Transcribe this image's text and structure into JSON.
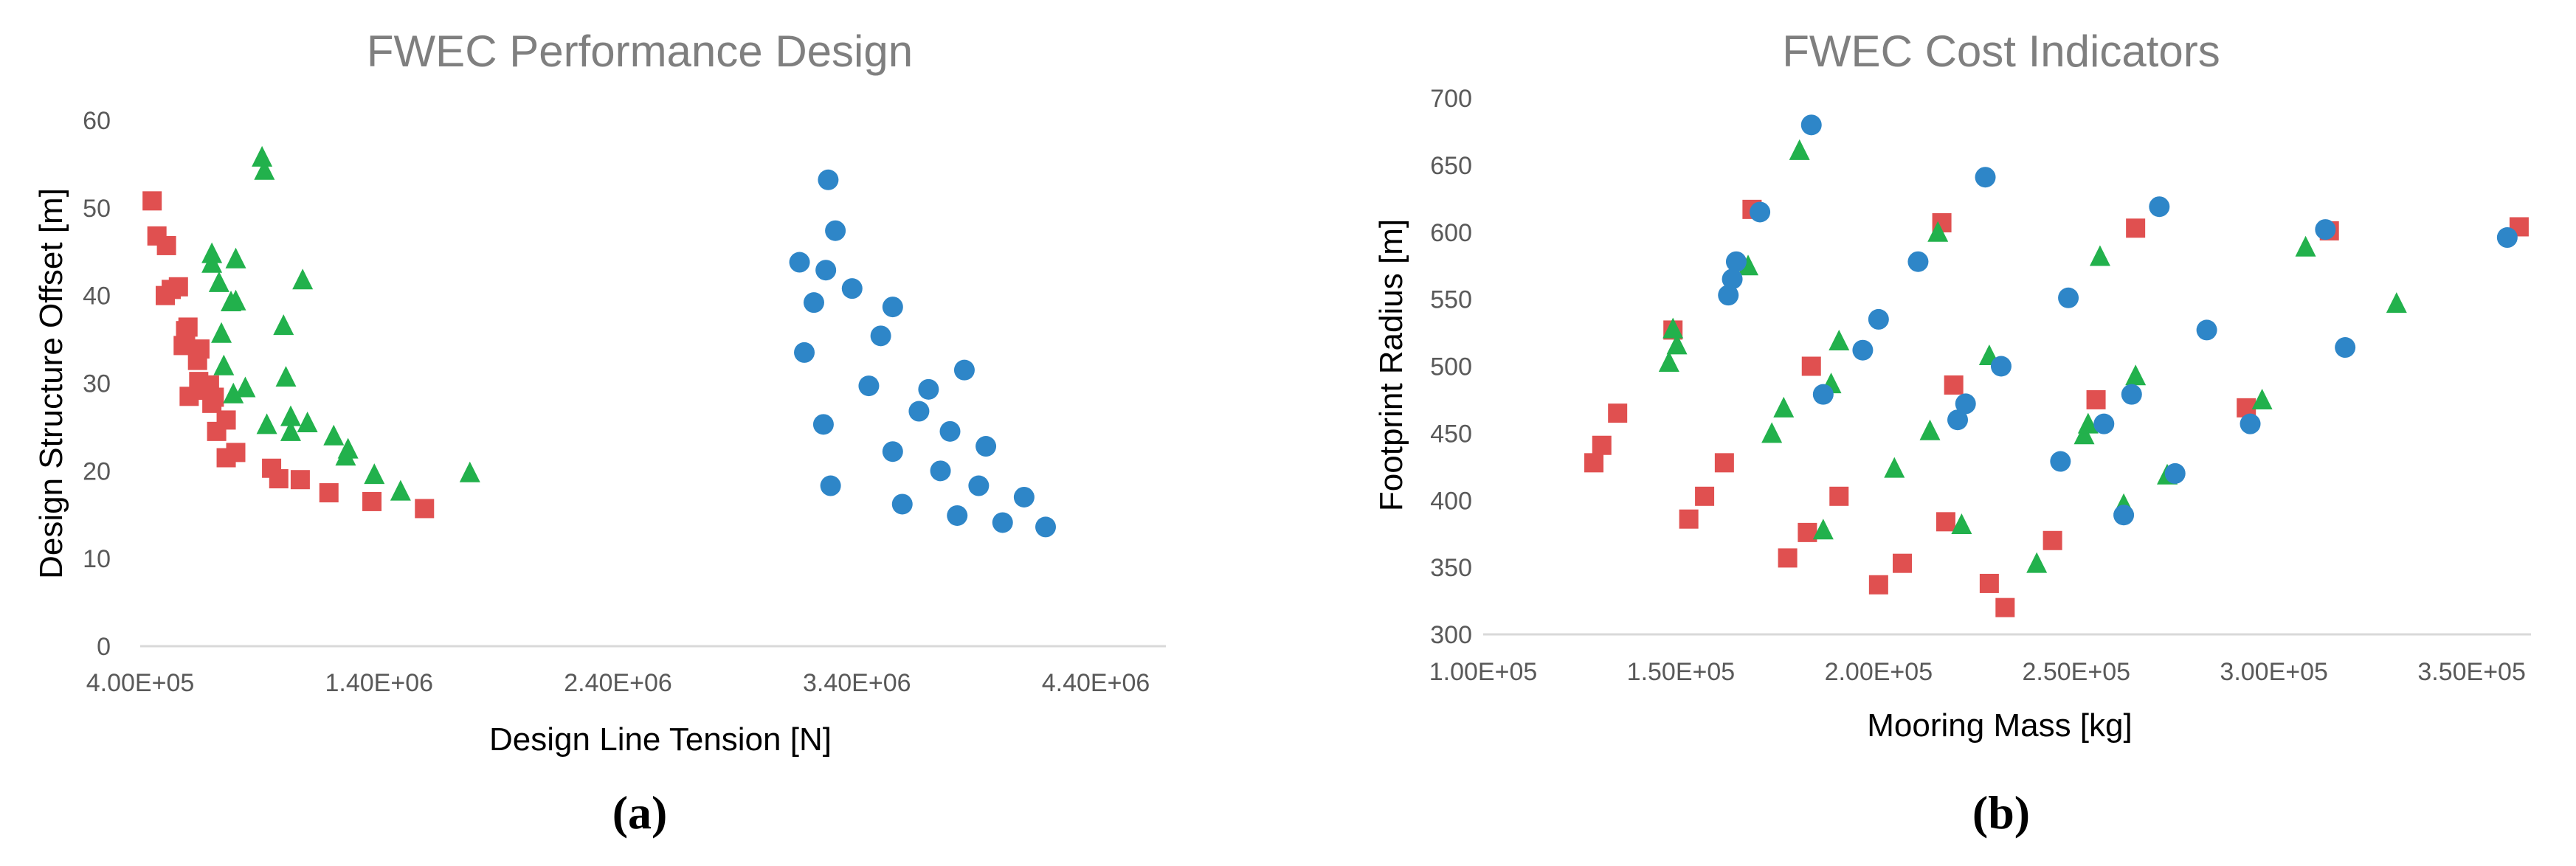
{
  "colors": {
    "red": "#e05050",
    "green": "#22b14c",
    "blue": "#2e86c8"
  },
  "chart_data": [
    {
      "type": "scatter",
      "title": "FWEC Performance Design",
      "xlabel": "Design Line Tension [N]",
      "ylabel": "Design Structure Offset [m]",
      "panel_label": "(a)",
      "xlim": [
        400000,
        4400000
      ],
      "ylim": [
        0,
        60
      ],
      "x_ticks": [
        400000,
        1400000,
        2400000,
        3400000,
        4400000
      ],
      "x_tick_labels": [
        "4.00E+05",
        "1.40E+06",
        "2.40E+06",
        "3.40E+06",
        "4.40E+06"
      ],
      "y_ticks": [
        0,
        10,
        20,
        30,
        40,
        50,
        60
      ],
      "y_tick_labels": [
        "0",
        "10",
        "20",
        "30",
        "40",
        "50",
        "60"
      ],
      "series": [
        {
          "marker": "square",
          "color": "#e05050",
          "points": [
            [
              450000,
              50.8
            ],
            [
              470000,
              46.8
            ],
            [
              510000,
              45.7
            ],
            [
              505000,
              40.0
            ],
            [
              530000,
              40.7
            ],
            [
              560000,
              41.0
            ],
            [
              580000,
              34.3
            ],
            [
              590000,
              36.0
            ],
            [
              600000,
              36.4
            ],
            [
              605000,
              28.5
            ],
            [
              640000,
              32.6
            ],
            [
              645000,
              30.2
            ],
            [
              650000,
              33.9
            ],
            [
              670000,
              29.2
            ],
            [
              690000,
              29.8
            ],
            [
              700000,
              27.7
            ],
            [
              710000,
              28.4
            ],
            [
              720000,
              24.5
            ],
            [
              760000,
              25.8
            ],
            [
              760000,
              21.5
            ],
            [
              800000,
              22.1
            ],
            [
              950000,
              20.3
            ],
            [
              980000,
              19.1
            ],
            [
              1070000,
              19.0
            ],
            [
              1190000,
              17.5
            ],
            [
              1370000,
              16.5
            ],
            [
              1590000,
              15.7
            ]
          ]
        },
        {
          "marker": "triangle",
          "color": "#22b14c",
          "points": [
            [
              700000,
              44.8
            ],
            [
              700000,
              43.7
            ],
            [
              730000,
              41.5
            ],
            [
              740000,
              35.7
            ],
            [
              750000,
              32.0
            ],
            [
              780000,
              39.3
            ],
            [
              790000,
              28.8
            ],
            [
              800000,
              44.2
            ],
            [
              800000,
              39.4
            ],
            [
              840000,
              29.5
            ],
            [
              910000,
              55.8
            ],
            [
              920000,
              54.3
            ],
            [
              930000,
              25.3
            ],
            [
              1000000,
              36.6
            ],
            [
              1010000,
              30.7
            ],
            [
              1030000,
              26.2
            ],
            [
              1030000,
              24.5
            ],
            [
              1080000,
              41.8
            ],
            [
              1100000,
              25.5
            ],
            [
              1210000,
              24.0
            ],
            [
              1270000,
              22.5
            ],
            [
              1260000,
              21.7
            ],
            [
              1380000,
              19.6
            ],
            [
              1490000,
              17.7
            ],
            [
              1780000,
              19.8
            ]
          ]
        },
        {
          "marker": "circle",
          "color": "#2e86c8",
          "points": [
            [
              3160000,
              43.8
            ],
            [
              3180000,
              33.5
            ],
            [
              3220000,
              39.2
            ],
            [
              3260000,
              25.3
            ],
            [
              3270000,
              42.9
            ],
            [
              3280000,
              53.2
            ],
            [
              3290000,
              18.3
            ],
            [
              3310000,
              47.4
            ],
            [
              3380000,
              40.8
            ],
            [
              3450000,
              29.7
            ],
            [
              3500000,
              35.4
            ],
            [
              3550000,
              38.7
            ],
            [
              3550000,
              22.2
            ],
            [
              3590000,
              16.2
            ],
            [
              3660000,
              26.8
            ],
            [
              3700000,
              29.3
            ],
            [
              3750000,
              20.0
            ],
            [
              3790000,
              24.5
            ],
            [
              3820000,
              14.9
            ],
            [
              3850000,
              31.5
            ],
            [
              3910000,
              18.3
            ],
            [
              3940000,
              22.8
            ],
            [
              4010000,
              14.1
            ],
            [
              4100000,
              17.0
            ],
            [
              4190000,
              13.6
            ]
          ]
        }
      ]
    },
    {
      "type": "scatter",
      "title": "FWEC Cost Indicators",
      "xlabel": "Mooring Mass [kg]",
      "ylabel": "Footprint Radius [m]",
      "panel_label": "(b)",
      "xlim": [
        100000,
        365000
      ],
      "ylim": [
        300,
        700
      ],
      "x_ticks": [
        100000,
        150000,
        200000,
        250000,
        300000,
        350000
      ],
      "x_tick_labels": [
        "1.00E+05",
        "1.50E+05",
        "2.00E+05",
        "2.50E+05",
        "3.00E+05",
        "3.50E+05"
      ],
      "y_ticks": [
        300,
        350,
        400,
        450,
        500,
        550,
        600,
        650,
        700
      ],
      "y_tick_labels": [
        "300",
        "350",
        "400",
        "450",
        "500",
        "550",
        "600",
        "650",
        "700"
      ],
      "series": [
        {
          "marker": "square",
          "color": "#e05050",
          "points": [
            [
              128000,
              428
            ],
            [
              130000,
              441
            ],
            [
              134000,
              465
            ],
            [
              148000,
              527
            ],
            [
              152000,
              386
            ],
            [
              156000,
              403
            ],
            [
              161000,
              428
            ],
            [
              168000,
              617
            ],
            [
              177000,
              357
            ],
            [
              182000,
              376
            ],
            [
              183000,
              500
            ],
            [
              190000,
              403
            ],
            [
              200000,
              337
            ],
            [
              206000,
              353
            ],
            [
              216000,
              607
            ],
            [
              217000,
              384
            ],
            [
              219000,
              486
            ],
            [
              228000,
              338
            ],
            [
              232000,
              320
            ],
            [
              244000,
              370
            ],
            [
              255000,
              475
            ],
            [
              265000,
              603
            ],
            [
              293000,
              469
            ],
            [
              314000,
              601
            ],
            [
              362000,
              604
            ]
          ]
        },
        {
          "marker": "triangle",
          "color": "#22b14c",
          "points": [
            [
              147000,
              503
            ],
            [
              148000,
              528
            ],
            [
              149000,
              516
            ],
            [
              167000,
              575
            ],
            [
              173000,
              450
            ],
            [
              176000,
              469
            ],
            [
              180000,
              661
            ],
            [
              186000,
              378
            ],
            [
              188000,
              487
            ],
            [
              190000,
              519
            ],
            [
              204000,
              424
            ],
            [
              213000,
              452
            ],
            [
              215000,
              600
            ],
            [
              221000,
              382
            ],
            [
              228000,
              508
            ],
            [
              240000,
              353
            ],
            [
              252000,
              449
            ],
            [
              253000,
              457
            ],
            [
              256000,
              582
            ],
            [
              262000,
              397
            ],
            [
              265000,
              493
            ],
            [
              273000,
              419
            ],
            [
              297000,
              475
            ],
            [
              308000,
              589
            ],
            [
              331000,
              547
            ]
          ]
        },
        {
          "marker": "circle",
          "color": "#2e86c8",
          "points": [
            [
              162000,
              553
            ],
            [
              163000,
              565
            ],
            [
              164000,
              578
            ],
            [
              170000,
              615
            ],
            [
              183000,
              680
            ],
            [
              186000,
              479
            ],
            [
              196000,
              512
            ],
            [
              200000,
              535
            ],
            [
              210000,
              578
            ],
            [
              220000,
              460
            ],
            [
              222000,
              472
            ],
            [
              227000,
              641
            ],
            [
              231000,
              500
            ],
            [
              246000,
              429
            ],
            [
              248000,
              551
            ],
            [
              257000,
              457
            ],
            [
              262000,
              389
            ],
            [
              264000,
              479
            ],
            [
              271000,
              619
            ],
            [
              275000,
              420
            ],
            [
              283000,
              527
            ],
            [
              294000,
              457
            ],
            [
              313000,
              602
            ],
            [
              318000,
              514
            ],
            [
              359000,
              596
            ]
          ]
        }
      ]
    }
  ]
}
